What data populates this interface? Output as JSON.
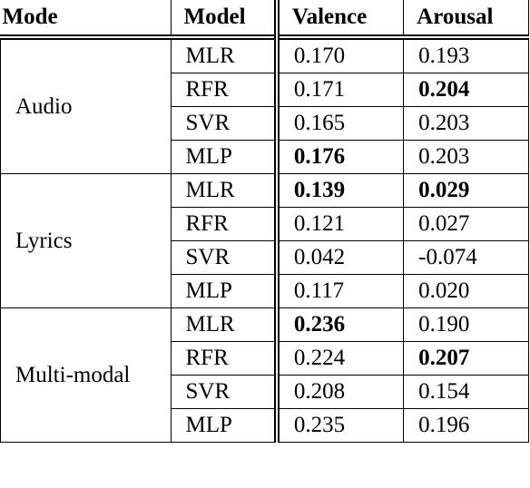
{
  "table": {
    "header": [
      "Mode",
      "Model",
      "Valence",
      "Arousal"
    ],
    "groups": [
      {
        "mode": "Audio",
        "rows": [
          {
            "model": "MLR",
            "valence": "0.170",
            "arousal": "0.193",
            "bold": [
              false,
              false
            ]
          },
          {
            "model": "RFR",
            "valence": "0.171",
            "arousal": "0.204",
            "bold": [
              false,
              true
            ]
          },
          {
            "model": "SVR",
            "valence": "0.165",
            "arousal": "0.203",
            "bold": [
              false,
              false
            ]
          },
          {
            "model": "MLP",
            "valence": "0.176",
            "arousal": "0.203",
            "bold": [
              true,
              false
            ]
          }
        ]
      },
      {
        "mode": "Lyrics",
        "rows": [
          {
            "model": "MLR",
            "valence": "0.139",
            "arousal": "0.029",
            "bold": [
              true,
              true
            ]
          },
          {
            "model": "RFR",
            "valence": "0.121",
            "arousal": "0.027",
            "bold": [
              false,
              false
            ]
          },
          {
            "model": "SVR",
            "valence": "0.042",
            "arousal": "-0.074",
            "bold": [
              false,
              false
            ]
          },
          {
            "model": "MLP",
            "valence": "0.117",
            "arousal": "0.020",
            "bold": [
              false,
              false
            ]
          }
        ]
      },
      {
        "mode": "Multi-modal",
        "rows": [
          {
            "model": "MLR",
            "valence": "0.236",
            "arousal": "0.190",
            "bold": [
              true,
              false
            ]
          },
          {
            "model": "RFR",
            "valence": "0.224",
            "arousal": "0.207",
            "bold": [
              false,
              true
            ]
          },
          {
            "model": "SVR",
            "valence": "0.208",
            "arousal": "0.154",
            "bold": [
              false,
              false
            ]
          },
          {
            "model": "MLP",
            "valence": "0.235",
            "arousal": "0.196",
            "bold": [
              false,
              false
            ]
          }
        ]
      }
    ]
  }
}
